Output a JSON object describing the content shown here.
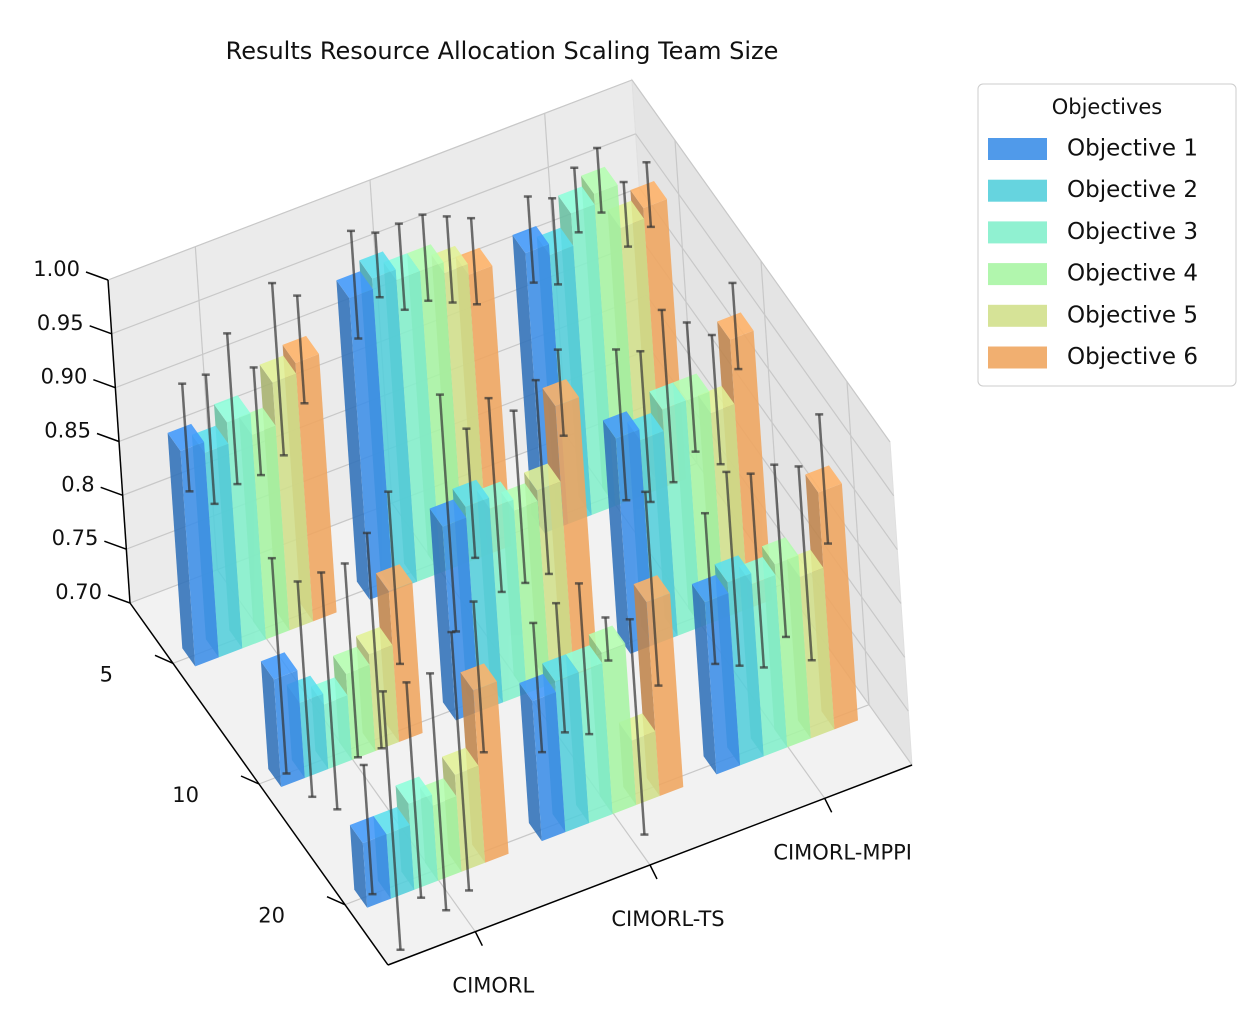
{
  "chart_data": {
    "type": "bar3d",
    "title": "Results Resource Allocation Scaling Team Size",
    "x_categories": [
      "CIMORL",
      "CIMORL-TS",
      "CIMORL-MPPI"
    ],
    "y_categories": [
      "5",
      "10",
      "20"
    ],
    "zlim": [
      0.7,
      1.0
    ],
    "zticks": [
      {
        "value": 0.7,
        "label": "0.70"
      },
      0.75,
      0.8,
      0.85,
      {
        "value": 0.9,
        "label": "0.90"
      },
      0.95,
      {
        "value": 1.0,
        "label": "1.00"
      }
    ],
    "grid": true,
    "legend_title": "Objectives",
    "legend_position": "outside-upper-right",
    "series": [
      {
        "name": "Objective 1",
        "color": "#3d8fe8",
        "values": [
          [
            0.9,
            0.98,
            0.96
          ],
          [
            0.8,
            0.88,
            0.9
          ],
          [
            0.76,
            0.83,
            0.86
          ]
        ],
        "errors": [
          [
            0.05,
            0.05,
            0.04
          ],
          [
            0.1,
            0.11,
            0.07
          ],
          [
            0.06,
            0.06,
            0.07
          ]
        ]
      },
      {
        "name": "Objective 2",
        "color": "#55cfdc",
        "values": [
          [
            0.89,
            0.99,
            0.95
          ],
          [
            0.77,
            0.89,
            0.89
          ],
          [
            0.76,
            0.84,
            0.87
          ]
        ],
        "errors": [
          [
            0.06,
            0.03,
            0.04
          ],
          [
            0.1,
            0.06,
            0.07
          ],
          [
            0.12,
            0.06,
            0.09
          ]
        ]
      },
      {
        "name": "Objective 3",
        "color": "#84f0cc",
        "values": [
          [
            0.91,
            0.98,
            0.98
          ],
          [
            0.76,
            0.88,
            0.91
          ],
          [
            0.78,
            0.84,
            0.86
          ]
        ],
        "errors": [
          [
            0.07,
            0.04,
            0.03
          ],
          [
            0.11,
            0.09,
            0.08
          ],
          [
            0.1,
            0.07,
            0.09
          ]
        ]
      },
      {
        "name": "Objective 4",
        "color": "#a8f5a4",
        "values": [
          [
            0.89,
            0.98,
            0.99
          ],
          [
            0.78,
            0.87,
            0.91
          ],
          [
            0.77,
            0.85,
            0.87
          ]
        ],
        "errors": [
          [
            0.05,
            0.04,
            0.03
          ],
          [
            0.09,
            0.08,
            0.06
          ],
          [
            0.11,
            0.02,
            0.08
          ]
        ]
      },
      {
        "name": "Objective 5",
        "color": "#d2e08c",
        "values": [
          [
            0.93,
            0.97,
            0.95
          ],
          [
            0.79,
            0.88,
            0.89
          ],
          [
            0.79,
            0.76,
            0.85
          ]
        ],
        "errors": [
          [
            0.08,
            0.04,
            0.03
          ],
          [
            0.1,
            0.09,
            0.06
          ],
          [
            0.12,
            0.1,
            0.09
          ]
        ]
      },
      {
        "name": "Objective 6",
        "color": "#f0a660",
        "values": [
          [
            0.94,
            0.96,
            0.96
          ],
          [
            0.84,
            0.95,
            0.95
          ],
          [
            0.86,
            0.88,
            0.92
          ]
        ],
        "errors": [
          [
            0.05,
            0.04,
            0.03
          ],
          [
            0.08,
            0.04,
            0.04
          ],
          [
            0.07,
            0.09,
            0.06
          ]
        ]
      }
    ]
  }
}
